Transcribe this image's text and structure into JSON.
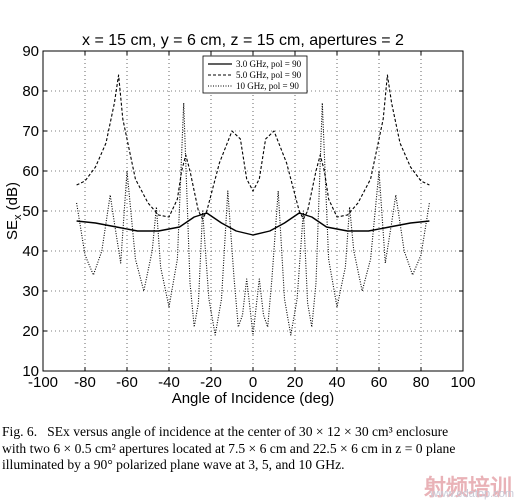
{
  "chart_data": {
    "type": "line",
    "title": "x = 15 cm, y = 6 cm, z = 15 cm, apertures = 2",
    "xlabel": "Angle of Incidence (deg)",
    "ylabel": "SE",
    "ylabel_sub": "x",
    "ylabel_unit": " (dB)",
    "xlim": [
      -100,
      100
    ],
    "ylim": [
      10,
      90
    ],
    "xticks": [
      "-100",
      "-80",
      "-60",
      "-40",
      "-20",
      "0",
      "20",
      "40",
      "60",
      "80",
      "100"
    ],
    "yticks": [
      "10",
      "20",
      "30",
      "40",
      "50",
      "60",
      "70",
      "80",
      "90"
    ],
    "grid": true,
    "legend_position": "top-center",
    "series": [
      {
        "name": "3.0 GHz, pol = 90",
        "style": "solid",
        "x": [
          -84,
          -75,
          -65,
          -55,
          -45,
          -35,
          -28,
          -22,
          -15,
          -8,
          0,
          8,
          15,
          22,
          28,
          35,
          45,
          55,
          65,
          75,
          84
        ],
        "values": [
          47.5,
          47,
          46,
          45,
          45,
          46,
          48.5,
          49.5,
          47,
          45,
          44,
          45,
          47,
          49.5,
          48.5,
          46,
          45,
          45,
          46,
          47,
          47.5
        ]
      },
      {
        "name": "5.0 GHz, pol = 90",
        "style": "dashed",
        "x": [
          -84,
          -80,
          -75,
          -70,
          -66,
          -64,
          -62,
          -56,
          -50,
          -45,
          -40,
          -36,
          -34,
          -32,
          -30,
          -26,
          -24,
          -22,
          -16,
          -10,
          -6,
          -3,
          0,
          3,
          6,
          10,
          16,
          22,
          24,
          26,
          30,
          32,
          34,
          36,
          40,
          45,
          50,
          56,
          62,
          64,
          66,
          70,
          75,
          80,
          84
        ],
        "values": [
          56.5,
          57.5,
          61,
          67,
          77,
          84,
          73,
          58,
          52,
          49,
          48.5,
          53,
          60,
          64,
          60,
          50,
          48,
          50,
          62,
          70,
          68,
          58,
          55,
          58,
          68,
          70,
          62,
          50,
          48,
          50,
          60,
          64,
          60,
          53,
          48.5,
          49,
          52,
          58,
          73,
          84,
          77,
          67,
          61,
          57.5,
          56.5
        ]
      },
      {
        "name": "10  GHz, pol = 90",
        "style": "dotted",
        "x": [
          -84,
          -80,
          -76,
          -72,
          -68,
          -66,
          -63,
          -60,
          -56,
          -52,
          -48,
          -46,
          -44,
          -40,
          -36,
          -33,
          -30,
          -28,
          -26,
          -24,
          -21,
          -18,
          -15,
          -12,
          -9,
          -7,
          -5,
          -3,
          0,
          3,
          5,
          7,
          9,
          12,
          15,
          18,
          21,
          24,
          26,
          28,
          30,
          33,
          36,
          40,
          44,
          46,
          48,
          52,
          56,
          60,
          63,
          66,
          68,
          72,
          76,
          80,
          84
        ],
        "values": [
          52,
          39,
          34,
          40,
          54,
          47,
          37,
          60,
          38,
          30,
          40,
          51,
          36,
          26,
          38,
          77,
          32,
          21,
          27,
          50,
          28,
          19,
          28,
          55,
          33,
          21,
          24,
          33,
          19,
          33,
          24,
          21,
          33,
          55,
          28,
          19,
          28,
          50,
          27,
          21,
          32,
          77,
          38,
          26,
          36,
          51,
          40,
          30,
          38,
          60,
          37,
          47,
          54,
          40,
          34,
          39,
          52
        ]
      }
    ]
  },
  "caption": {
    "label": "Fig. 6.",
    "text": "SEx versus angle of incidence at the center of 30 × 12 × 30 cm³ enclosure with two 6 × 0.5 cm² apertures located at 7.5 × 6 cm and 22.5 × 6 cm in z = 0 plane illuminated by a 90° polarized plane wave at 3, 5, and 10 GHz."
  },
  "watermark": {
    "text": "射频培训",
    "url": "www.edatop.com"
  }
}
